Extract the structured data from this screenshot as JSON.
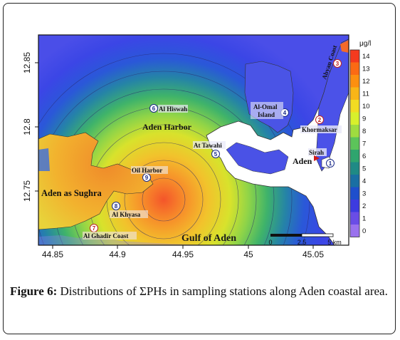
{
  "map": {
    "axes": {
      "x_ticks": [
        "44.85",
        "44.9",
        "44.95",
        "45",
        "45.05"
      ],
      "y_ticks": [
        "12.85",
        "12.8",
        "12.75"
      ]
    },
    "places": {
      "aden_as_sughra": "Aden as Sughra",
      "aden_harbor": "Aden Harbor",
      "gulf_of_aden": "Gulf of Aden",
      "aden": "Aden",
      "abyan_coast": "Abyan Coast"
    },
    "stations": [
      {
        "num": "1",
        "name": "Sirah"
      },
      {
        "num": "2",
        "name": "Khormaksar"
      },
      {
        "num": "3",
        "name": "Abyan Coast"
      },
      {
        "num": "4",
        "name": "Al-Omal Island"
      },
      {
        "num": "5",
        "name": "At Tawahi"
      },
      {
        "num": "6",
        "name": "Al Hiswah"
      },
      {
        "num": "7",
        "name": "Al Ghadir Coast"
      },
      {
        "num": "8",
        "name": "Al Khyasa"
      },
      {
        "num": "9",
        "name": "Oil Harbor"
      }
    ],
    "al_omal_line1": "Al-Omal",
    "al_omal_line2": "Island",
    "scale_bar": {
      "zero": "0",
      "mid": "2.5",
      "end": "5 km"
    },
    "colorbar": {
      "unit": "μg/l",
      "ticks": [
        "14",
        "13",
        "12",
        "11",
        "10",
        "9",
        "8",
        "7",
        "6",
        "5",
        "4",
        "3",
        "2",
        "1",
        "0"
      ],
      "colors": [
        "#f43a1e",
        "#fb6a14",
        "#fc8f10",
        "#f8b517",
        "#f2dc22",
        "#d8f02c",
        "#9fdc40",
        "#5cc45a",
        "#2fa56e",
        "#1f8a85",
        "#1a6fa3",
        "#1f4fcc",
        "#3d3be0",
        "#6a4de6",
        "#9a72ee"
      ]
    }
  },
  "caption": {
    "label": "Figure 6:",
    "text": "Distributions of ΣPHs in sampling stations along Aden coastal area."
  }
}
